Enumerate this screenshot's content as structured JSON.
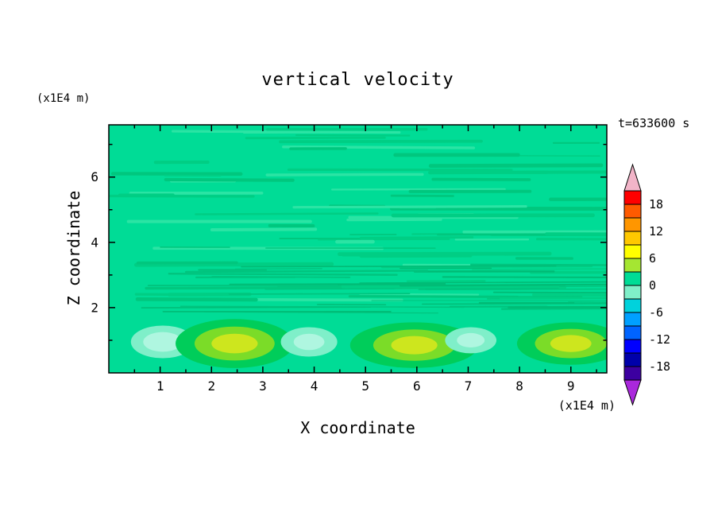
{
  "title": "vertical velocity",
  "timestamp": "t=633600 s",
  "axes": {
    "x": {
      "label": "X coordinate",
      "unit": "(x1E4 m)",
      "min": 0,
      "max": 9.7,
      "major_ticks": [
        1,
        2,
        3,
        4,
        5,
        6,
        7,
        8,
        9
      ],
      "minor_step": 0.5
    },
    "z": {
      "label": "Z coordinate",
      "unit": "(x1E4 m)",
      "min": 0,
      "max": 7.6,
      "major_ticks": [
        2,
        4,
        6
      ],
      "minor_step": 1
    }
  },
  "colorbar": {
    "top_value": 21,
    "step": 3,
    "labels": [
      18,
      12,
      6,
      0,
      -6,
      -12,
      -18
    ],
    "top_arrow_color": "#F2B4C8",
    "bottom_arrow_color": "#AA28DC",
    "segments": [
      {
        "from": 18,
        "to": 21,
        "color": "#FF0000"
      },
      {
        "from": 15,
        "to": 18,
        "color": "#FF5A00"
      },
      {
        "from": 12,
        "to": 15,
        "color": "#FF9600"
      },
      {
        "from": 9,
        "to": 12,
        "color": "#FFC800"
      },
      {
        "from": 6,
        "to": 9,
        "color": "#FFFF00"
      },
      {
        "from": 3,
        "to": 6,
        "color": "#A5E632"
      },
      {
        "from": 0,
        "to": 3,
        "color": "#00DC96"
      },
      {
        "from": -3,
        "to": 0,
        "color": "#7FEFC9"
      },
      {
        "from": -6,
        "to": -3,
        "color": "#00D2DC"
      },
      {
        "from": -9,
        "to": -6,
        "color": "#00A0FF"
      },
      {
        "from": -12,
        "to": -9,
        "color": "#0064FF"
      },
      {
        "from": -15,
        "to": -12,
        "color": "#0000FF"
      },
      {
        "from": -18,
        "to": -15,
        "color": "#0000AA"
      },
      {
        "from": -21,
        "to": -18,
        "color": "#3C00A0"
      }
    ]
  },
  "chart_data": {
    "type": "heatmap",
    "title": "vertical velocity",
    "xlabel": "X coordinate (x1E4 m)",
    "ylabel": "Z coordinate (x1E4 m)",
    "time_label": "t=633600 s",
    "x_range": [
      0,
      9.7
    ],
    "z_range": [
      0,
      7.6
    ],
    "contour_interval": 3,
    "colorbar_labels": [
      18,
      12,
      6,
      0,
      -6,
      -12,
      -18
    ],
    "field_summary": {
      "interior": "near-zero values (0 to +3 band) with thin horizontal gravity-wave streaks across the whole domain",
      "bottom_cells": [
        {
          "x": 1.05,
          "z": 0.95,
          "peak_value": -2,
          "type": "downdraft"
        },
        {
          "x": 2.45,
          "z": 0.9,
          "peak_value": 8,
          "type": "updraft"
        },
        {
          "x": 3.9,
          "z": 0.95,
          "peak_value": -2,
          "type": "downdraft"
        },
        {
          "x": 5.95,
          "z": 0.85,
          "peak_value": 8,
          "type": "updraft"
        },
        {
          "x": 7.05,
          "z": 1.0,
          "peak_value": -2,
          "type": "downdraft"
        },
        {
          "x": 9.0,
          "z": 0.9,
          "peak_value": 8,
          "type": "updraft"
        }
      ]
    }
  },
  "render": {
    "background_color": "#00DC96",
    "cells": [
      {
        "x": 1.05,
        "z": 0.95,
        "layers": [
          {
            "rx": 0.62,
            "rz": 0.5,
            "color": "#7FEFC9"
          },
          {
            "rx": 0.38,
            "rz": 0.3,
            "color": "#AFF6E0"
          }
        ]
      },
      {
        "x": 2.45,
        "z": 0.9,
        "layers": [
          {
            "rx": 1.15,
            "rz": 0.75,
            "color": "#00CD5A"
          },
          {
            "rx": 0.78,
            "rz": 0.52,
            "color": "#7BDC28"
          },
          {
            "rx": 0.45,
            "rz": 0.3,
            "color": "#CDE61E"
          }
        ]
      },
      {
        "x": 3.9,
        "z": 0.95,
        "layers": [
          {
            "rx": 0.55,
            "rz": 0.45,
            "color": "#7FEFC9"
          },
          {
            "rx": 0.3,
            "rz": 0.25,
            "color": "#AFF6E0"
          }
        ]
      },
      {
        "x": 5.95,
        "z": 0.85,
        "layers": [
          {
            "rx": 1.25,
            "rz": 0.7,
            "color": "#00CD5A"
          },
          {
            "rx": 0.8,
            "rz": 0.48,
            "color": "#7BDC28"
          },
          {
            "rx": 0.45,
            "rz": 0.28,
            "color": "#CDE61E"
          }
        ]
      },
      {
        "x": 7.05,
        "z": 1.0,
        "layers": [
          {
            "rx": 0.5,
            "rz": 0.4,
            "color": "#7FEFC9"
          },
          {
            "rx": 0.27,
            "rz": 0.22,
            "color": "#AFF6E0"
          }
        ]
      },
      {
        "x": 9.0,
        "z": 0.9,
        "layers": [
          {
            "rx": 1.05,
            "rz": 0.65,
            "color": "#00CD5A"
          },
          {
            "rx": 0.7,
            "rz": 0.45,
            "color": "#7BDC28"
          },
          {
            "rx": 0.4,
            "rz": 0.26,
            "color": "#CDE61E"
          }
        ]
      }
    ],
    "streak_bands": [
      {
        "seed": 11,
        "count": 85,
        "z_min": 1.9,
        "z_max": 7.5,
        "x_min": 0,
        "x_span": 8.8,
        "len_min": 0.7,
        "len_max": 5.0,
        "h_min": 1.5,
        "h_max": 5.0,
        "colors": [
          "#00CE84",
          "#00C77E",
          "#2BE4A4"
        ]
      },
      {
        "seed": 23,
        "count": 35,
        "z_min": 1.85,
        "z_max": 3.4,
        "x_min": 0,
        "x_span": 9.2,
        "len_min": 1.0,
        "len_max": 6.5,
        "h_min": 1.0,
        "h_max": 2.6,
        "colors": [
          "#00BC76",
          "#00C47E"
        ]
      }
    ]
  }
}
